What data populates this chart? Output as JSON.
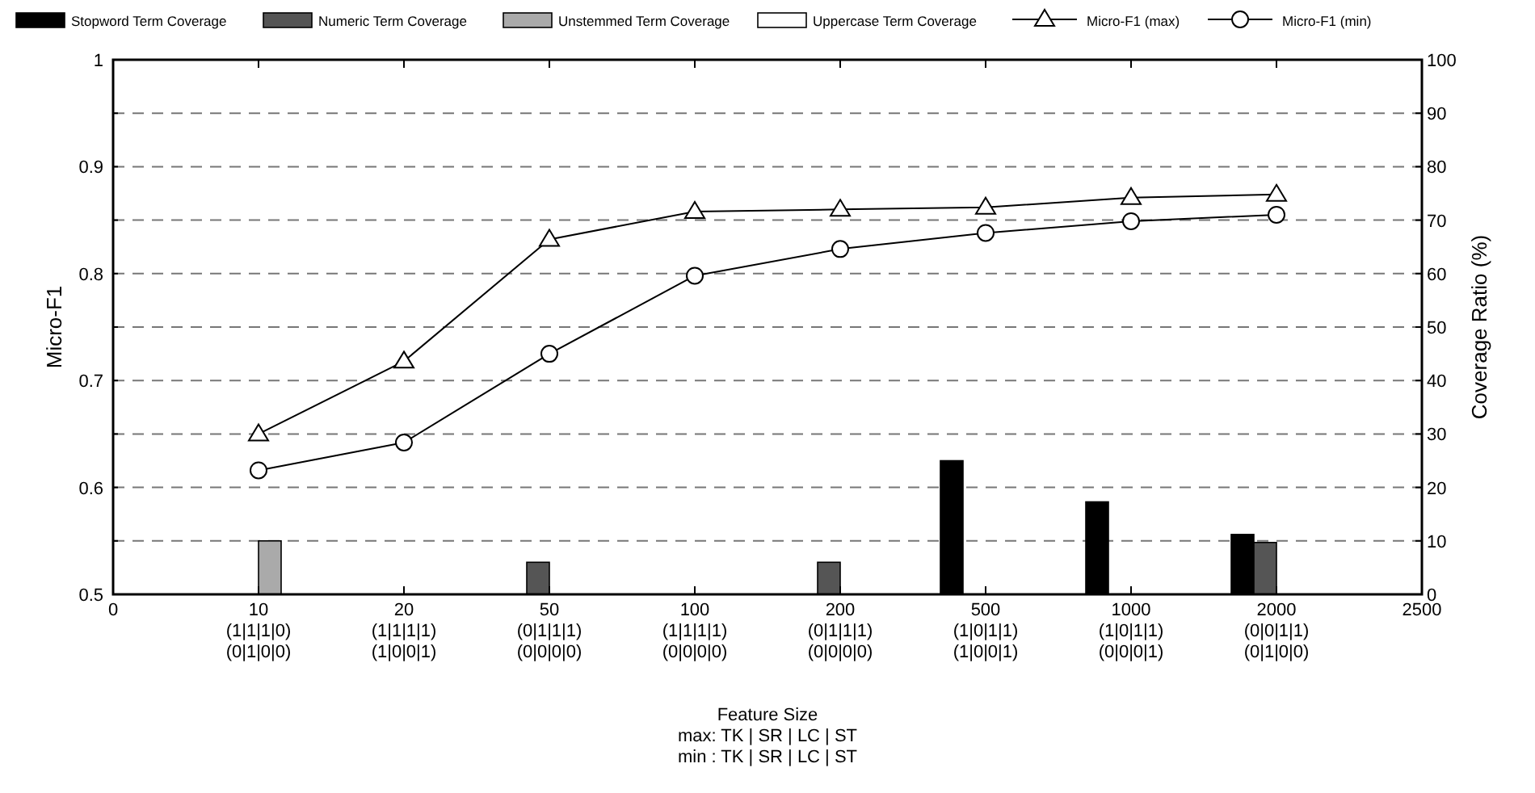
{
  "chart_data": {
    "type": "bar",
    "xlabel": "Feature Size\nmax: TK | SR | LC | ST\nmin : TK | SR | LC | ST",
    "ylabel": "Micro-F1",
    "y2label": "Coverage Ratio (%)",
    "categories": [
      "0",
      "10\n(1|1|1|0)\n(0|1|0|0)",
      "20\n(1|1|1|1)\n(1|0|0|1)",
      "50\n(0|1|1|1)\n(0|0|0|0)",
      "100\n(1|1|1|1)\n(0|0|0|0)",
      "200\n(0|1|1|1)\n(0|0|0|0)",
      "500\n(1|0|1|1)\n(1|0|0|1)",
      "1000\n(1|0|1|1)\n(0|0|0|1)",
      "2000\n(0|0|1|1)\n(0|1|0|0)",
      "2500"
    ],
    "series": [
      {
        "name": "Stopword Term Coverage",
        "axis": "y2",
        "color": "#000000",
        "values": [
          null,
          0,
          0,
          0,
          0,
          0,
          25,
          17.3,
          11.2,
          null
        ]
      },
      {
        "name": "Numeric Term Coverage",
        "axis": "y2",
        "color": "#555555",
        "values": [
          null,
          0,
          0,
          6,
          0,
          6,
          0,
          0,
          9.7,
          null
        ]
      },
      {
        "name": "Unstemmed Term Coverage",
        "axis": "y2",
        "color": "#aaaaaa",
        "values": [
          null,
          10,
          0,
          0,
          0,
          0,
          0,
          0,
          0,
          null
        ]
      },
      {
        "name": "Uppercase Term Coverage",
        "axis": "y2",
        "color": "#ffffff",
        "values": [
          null,
          0,
          0,
          0,
          0,
          0,
          0,
          0,
          0,
          null
        ]
      },
      {
        "name": "Micro-F1 (max)",
        "type": "line",
        "axis": "y",
        "color": "#000000",
        "marker": "triangle",
        "values": [
          null,
          0.65,
          0.718,
          0.832,
          0.858,
          0.86,
          0.862,
          0.871,
          0.874,
          null
        ]
      },
      {
        "name": "Micro-F1 (min)",
        "type": "line",
        "axis": "y",
        "color": "#000000",
        "marker": "circle",
        "values": [
          null,
          0.616,
          0.642,
          0.725,
          0.798,
          0.823,
          0.838,
          0.849,
          0.855,
          null
        ]
      }
    ],
    "ylim": [
      0.5,
      1
    ],
    "yticks": [
      0.5,
      {
        "value": 0.55,
        "label": null
      },
      0.6,
      {
        "value": 0.65,
        "label": null
      },
      0.7,
      {
        "value": 0.75,
        "label": null
      },
      0.8,
      {
        "value": 0.85,
        "label": null
      },
      0.9,
      {
        "value": 0.95,
        "label": null
      },
      1
    ],
    "y2lim": [
      0,
      100
    ],
    "y2ticks": [
      0,
      10,
      20,
      30,
      40,
      50,
      60,
      70,
      80,
      90,
      100
    ],
    "grid": "y",
    "legend": "top",
    "line_style": "solid"
  }
}
